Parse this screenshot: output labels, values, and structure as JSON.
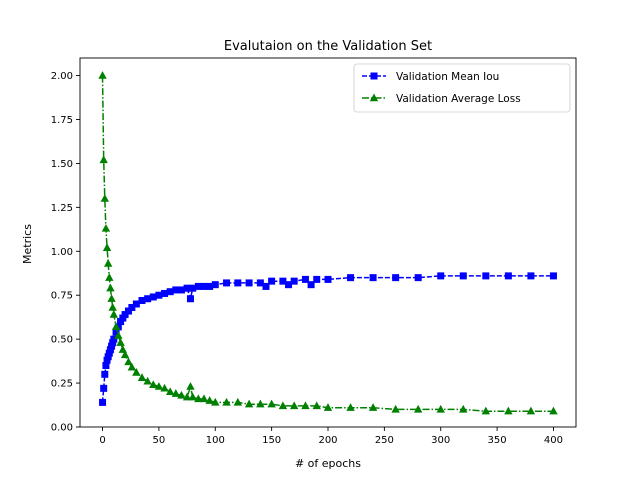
{
  "chart_data": {
    "type": "line",
    "title": "Evalutaion on the Validation Set",
    "xlabel": "# of epochs",
    "ylabel": "Metrics",
    "xlim": [
      -20,
      420
    ],
    "ylim": [
      0,
      2.1
    ],
    "xticks": [
      0,
      50,
      100,
      150,
      200,
      250,
      300,
      350,
      400
    ],
    "xtick_labels": [
      "0",
      "50",
      "100",
      "150",
      "200",
      "250",
      "300",
      "350",
      "400"
    ],
    "yticks": [
      0,
      0.25,
      0.5,
      0.75,
      1.0,
      1.25,
      1.5,
      1.75,
      2.0
    ],
    "ytick_labels": [
      "0.00",
      "0.25",
      "0.50",
      "0.75",
      "1.00",
      "1.25",
      "1.50",
      "1.75",
      "2.00"
    ],
    "grid": false,
    "legend_position": "top-right",
    "series": [
      {
        "name": "Validation Mean Iou",
        "color": "#0000ff",
        "marker": "square",
        "linestyle": "dashed",
        "x": [
          0,
          1,
          2,
          3,
          4,
          5,
          6,
          7,
          8,
          9,
          10,
          12,
          14,
          16,
          18,
          20,
          23,
          26,
          30,
          35,
          40,
          45,
          50,
          55,
          60,
          65,
          70,
          75,
          78,
          80,
          85,
          90,
          95,
          100,
          110,
          120,
          130,
          140,
          145,
          150,
          160,
          165,
          170,
          180,
          185,
          190,
          200,
          220,
          240,
          260,
          280,
          300,
          320,
          340,
          360,
          380,
          400
        ],
        "values": [
          0.14,
          0.22,
          0.3,
          0.35,
          0.38,
          0.4,
          0.42,
          0.44,
          0.46,
          0.48,
          0.5,
          0.54,
          0.57,
          0.6,
          0.62,
          0.64,
          0.66,
          0.68,
          0.7,
          0.72,
          0.73,
          0.74,
          0.75,
          0.76,
          0.77,
          0.78,
          0.78,
          0.79,
          0.73,
          0.79,
          0.8,
          0.8,
          0.8,
          0.81,
          0.82,
          0.82,
          0.82,
          0.82,
          0.8,
          0.83,
          0.83,
          0.81,
          0.83,
          0.84,
          0.81,
          0.84,
          0.84,
          0.85,
          0.85,
          0.85,
          0.85,
          0.86,
          0.86,
          0.86,
          0.86,
          0.86,
          0.86
        ]
      },
      {
        "name": "Validation Average Loss",
        "color": "#008000",
        "marker": "triangle",
        "linestyle": "dashdot",
        "x": [
          0,
          1,
          2,
          3,
          4,
          5,
          6,
          7,
          8,
          9,
          10,
          12,
          14,
          16,
          18,
          20,
          23,
          26,
          30,
          35,
          40,
          45,
          50,
          55,
          60,
          65,
          70,
          75,
          78,
          80,
          85,
          90,
          95,
          100,
          110,
          120,
          130,
          140,
          150,
          160,
          170,
          180,
          190,
          200,
          220,
          240,
          260,
          280,
          300,
          320,
          340,
          360,
          380,
          400
        ],
        "values": [
          2.0,
          1.52,
          1.3,
          1.13,
          1.02,
          0.93,
          0.85,
          0.79,
          0.73,
          0.68,
          0.64,
          0.57,
          0.52,
          0.48,
          0.44,
          0.41,
          0.37,
          0.34,
          0.31,
          0.28,
          0.26,
          0.24,
          0.23,
          0.22,
          0.2,
          0.19,
          0.18,
          0.17,
          0.23,
          0.17,
          0.16,
          0.16,
          0.15,
          0.14,
          0.14,
          0.14,
          0.13,
          0.13,
          0.13,
          0.12,
          0.12,
          0.12,
          0.12,
          0.11,
          0.11,
          0.11,
          0.1,
          0.1,
          0.1,
          0.1,
          0.09,
          0.09,
          0.09,
          0.09
        ]
      }
    ]
  }
}
